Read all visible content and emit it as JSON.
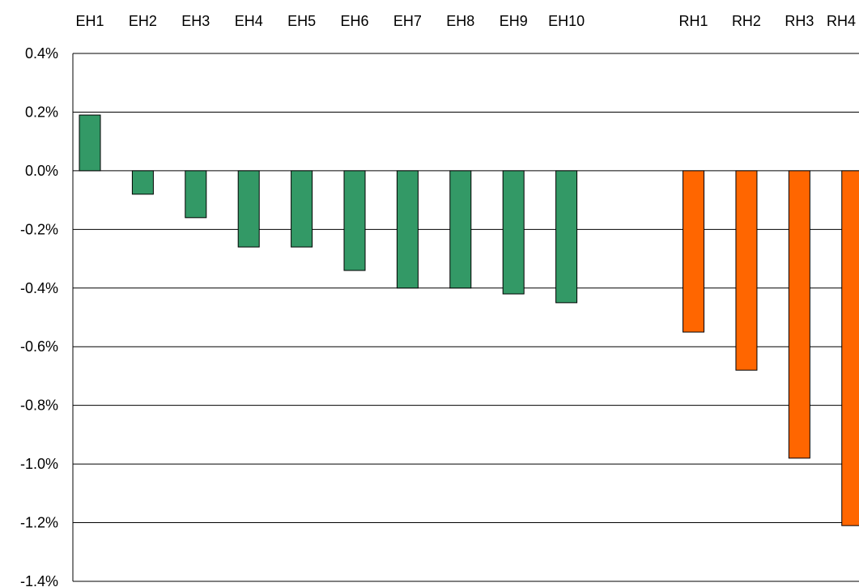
{
  "chart_data": {
    "type": "bar",
    "title": "",
    "xlabel": "",
    "ylabel": "",
    "ylim": [
      -1.4,
      0.4
    ],
    "y_unit": "%",
    "y_ticks": [
      0.4,
      0.2,
      0.0,
      -0.2,
      -0.4,
      -0.6,
      -0.8,
      -1.0,
      -1.2,
      -1.4
    ],
    "y_tick_labels": [
      "0.4%",
      "0.2%",
      "0.0%",
      "-0.2%",
      "-0.4%",
      "-0.6%",
      "-0.8%",
      "-1.0%",
      "-1.2%",
      "-1.4%"
    ],
    "grid": true,
    "category_labels_position": "top",
    "categories": [
      "EH1",
      "EH2",
      "EH3",
      "EH4",
      "EH5",
      "EH6",
      "EH7",
      "EH8",
      "EH9",
      "EH10",
      "RH1",
      "RH2",
      "RH3",
      "RH4"
    ],
    "values": [
      0.19,
      -0.08,
      -0.16,
      -0.26,
      -0.26,
      -0.34,
      -0.4,
      -0.4,
      -0.42,
      -0.45,
      -0.55,
      -0.68,
      -0.98,
      -1.21
    ],
    "groups": [
      {
        "members": [
          "EH1",
          "EH2",
          "EH3",
          "EH4",
          "EH5",
          "EH6",
          "EH7",
          "EH8",
          "EH9",
          "EH10"
        ],
        "color": "#339966"
      },
      {
        "members": [
          "RH1",
          "RH2",
          "RH3",
          "RH4"
        ],
        "color": "#FF6600"
      }
    ],
    "colors": {
      "eh": "#339966",
      "rh": "#FF6600",
      "bar_outline": "#000000",
      "grid": "#000000",
      "axis": "#000000"
    }
  }
}
